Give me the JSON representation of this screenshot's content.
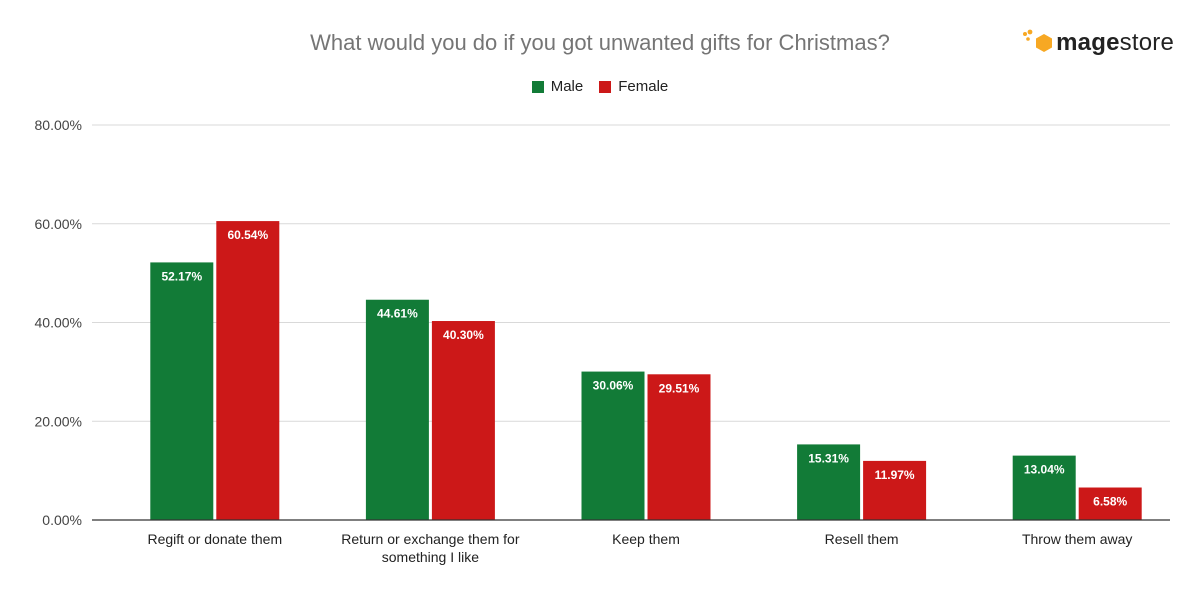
{
  "title": "What would you do if you got unwanted gifts for Christmas?",
  "logo": {
    "brand_bold": "mage",
    "brand_regular": "store"
  },
  "colors": {
    "male": "#127B37",
    "female": "#CC1818",
    "grid": "#d9d9d9",
    "axis": "#333333",
    "tick": "#444444"
  },
  "chart_data": {
    "type": "bar",
    "title": "What would you do if you got unwanted gifts for Christmas?",
    "categories": [
      [
        "Regift or donate them"
      ],
      [
        "Return or exchange them for",
        "something I like"
      ],
      [
        "Keep them"
      ],
      [
        "Resell them"
      ],
      [
        "Throw them away"
      ]
    ],
    "series": [
      {
        "name": "Male",
        "values": [
          52.17,
          44.61,
          30.06,
          15.31,
          13.04
        ],
        "labels": [
          "52.17%",
          "44.61%",
          "30.06%",
          "15.31%",
          "13.04%"
        ]
      },
      {
        "name": "Female",
        "values": [
          60.54,
          40.3,
          29.51,
          11.97,
          6.58
        ],
        "labels": [
          "60.54%",
          "40.30%",
          "29.51%",
          "11.97%",
          "6.58%"
        ]
      }
    ],
    "yticks": [
      {
        "value": 0,
        "label": "0.00%"
      },
      {
        "value": 20,
        "label": "20.00%"
      },
      {
        "value": 40,
        "label": "40.00%"
      },
      {
        "value": 60,
        "label": "60.00%"
      },
      {
        "value": 80,
        "label": "80.00%"
      }
    ],
    "ylim": [
      0,
      80
    ],
    "grid": true,
    "legend_position": "top-center",
    "xlabel": "",
    "ylabel": ""
  }
}
